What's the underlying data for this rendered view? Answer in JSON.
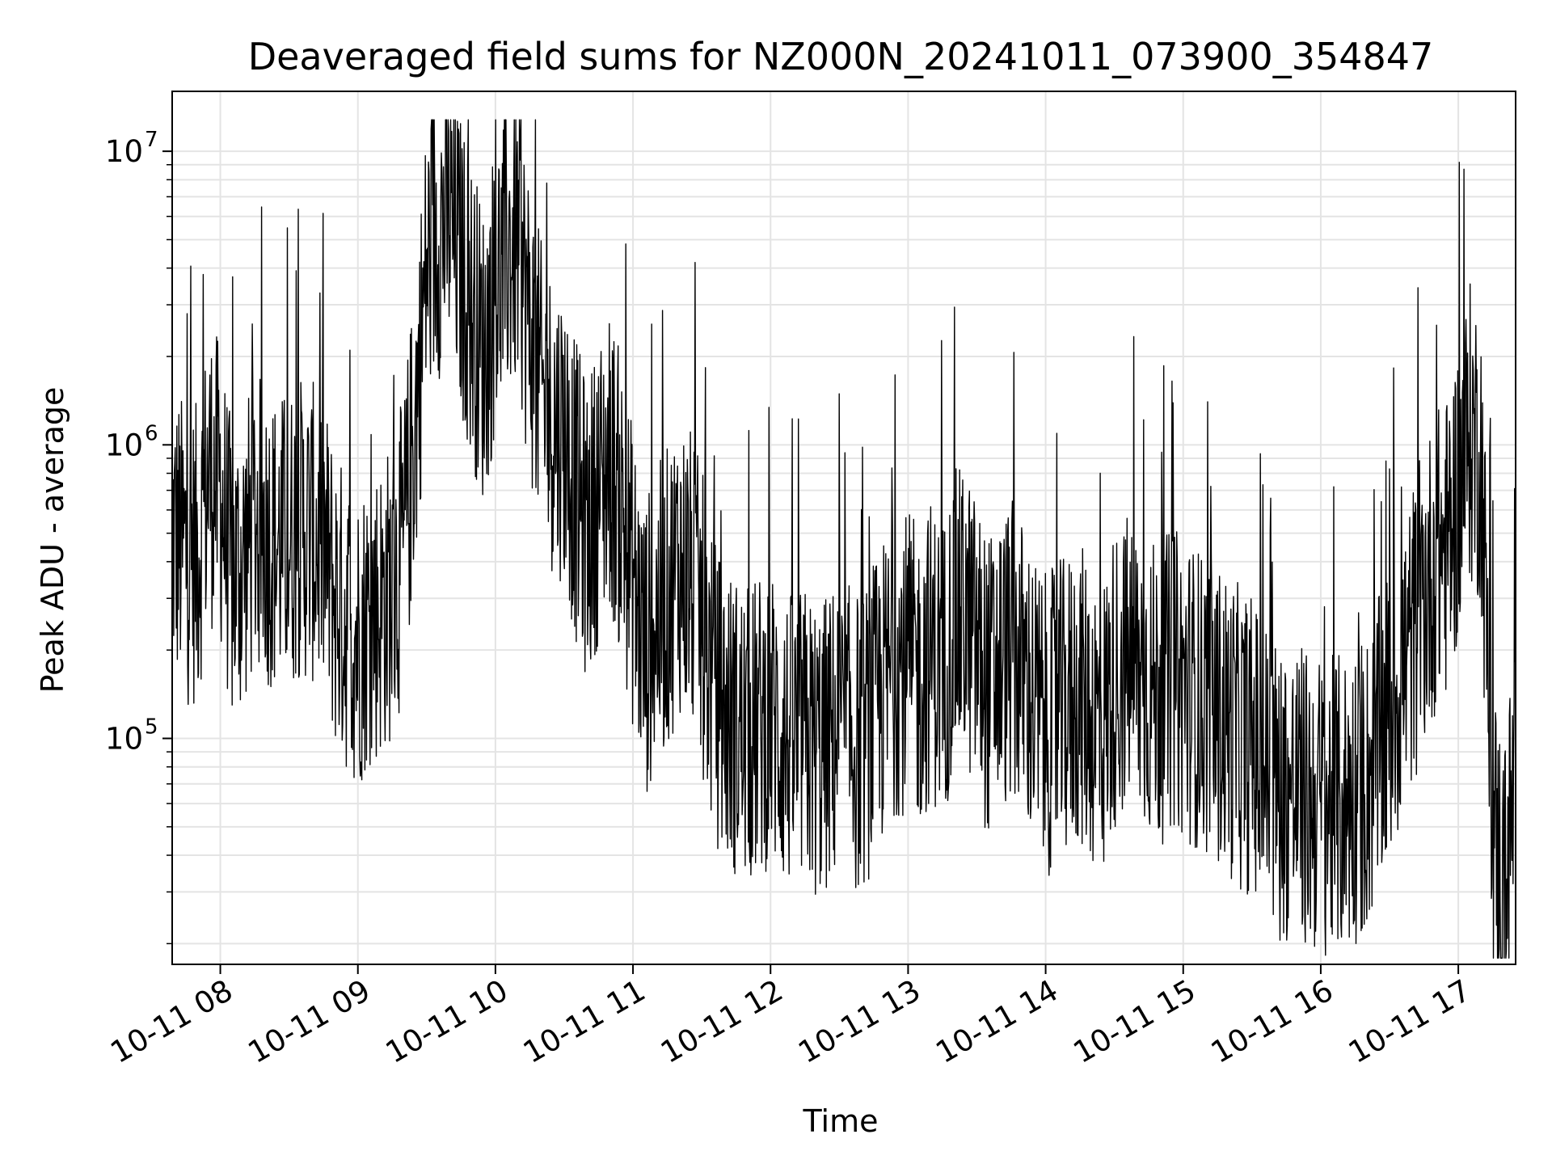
{
  "chart_data": {
    "type": "line",
    "title": "Deaveraged field sums for NZ000N_20241011_073900_354847",
    "xlabel": "Time",
    "ylabel": "Peak ADU - average",
    "yscale": "log",
    "ylim": [
      17000,
      16000000
    ],
    "xlim": [
      "2024-10-11 07:39:00",
      "2024-10-11 17:25:00"
    ],
    "grid": true,
    "line_color": "#000000",
    "x_ticks": [
      "10-11 08",
      "10-11 09",
      "10-11 10",
      "10-11 11",
      "10-11 12",
      "10-11 13",
      "10-11 14",
      "10-11 15",
      "10-11 16",
      "10-11 17"
    ],
    "y_ticks": [
      {
        "base": "10",
        "exp": "5",
        "value": 100000
      },
      {
        "base": "10",
        "exp": "6",
        "value": 1000000
      },
      {
        "base": "10",
        "exp": "7",
        "value": 10000000
      }
    ],
    "series": [
      {
        "x": [
          "07:39",
          "07:45",
          "07:50",
          "07:55",
          "08:00",
          "08:05",
          "08:10",
          "08:15",
          "08:20",
          "08:25",
          "08:30",
          "08:35",
          "08:40",
          "08:45",
          "08:50",
          "08:55",
          "09:00",
          "09:05",
          "09:10",
          "09:15",
          "09:20",
          "09:25",
          "09:30",
          "09:35",
          "09:40",
          "09:45",
          "09:50",
          "09:55",
          "10:00",
          "10:05",
          "10:10",
          "10:15",
          "10:20",
          "10:25",
          "10:30",
          "10:35",
          "10:40",
          "10:45",
          "10:50",
          "10:55",
          "11:00",
          "11:05",
          "11:10",
          "11:15",
          "11:20",
          "11:25",
          "11:30",
          "11:35",
          "11:40",
          "11:45",
          "11:50",
          "11:55",
          "12:00",
          "12:05",
          "12:10",
          "12:15",
          "12:20",
          "12:25",
          "12:30",
          "12:35",
          "12:40",
          "12:45",
          "12:50",
          "12:55",
          "13:00",
          "13:05",
          "13:10",
          "13:15",
          "13:20",
          "13:25",
          "13:30",
          "13:35",
          "13:40",
          "13:45",
          "13:50",
          "13:55",
          "14:00",
          "14:05",
          "14:10",
          "14:15",
          "14:20",
          "14:25",
          "14:30",
          "14:35",
          "14:40",
          "14:45",
          "14:50",
          "14:55",
          "15:00",
          "15:05",
          "15:10",
          "15:15",
          "15:20",
          "15:25",
          "15:30",
          "15:35",
          "15:40",
          "15:45",
          "15:50",
          "15:55",
          "16:00",
          "16:05",
          "16:10",
          "16:15",
          "16:20",
          "16:25",
          "16:30",
          "16:35",
          "16:40",
          "16:45",
          "16:50",
          "16:55",
          "17:00",
          "17:05",
          "17:10",
          "17:15",
          "17:20",
          "17:25"
        ],
        "values": [
          500000,
          430000,
          420000,
          800000,
          700000,
          350000,
          400000,
          550000,
          500000,
          450000,
          480000,
          520000,
          500000,
          450000,
          300000,
          250000,
          220000,
          260000,
          280000,
          320000,
          450000,
          1200000,
          4000000,
          5500000,
          6000000,
          4000000,
          2800000,
          2000000,
          3500000,
          4500000,
          5000000,
          2500000,
          1500000,
          1200000,
          1100000,
          700000,
          500000,
          700000,
          900000,
          600000,
          350000,
          200000,
          250000,
          300000,
          400000,
          350000,
          250000,
          150000,
          120000,
          110000,
          100000,
          110000,
          120000,
          100000,
          95000,
          100000,
          90000,
          95000,
          110000,
          100000,
          95000,
          120000,
          150000,
          180000,
          180000,
          160000,
          200000,
          170000,
          250000,
          260000,
          200000,
          150000,
          180000,
          200000,
          170000,
          130000,
          110000,
          120000,
          130000,
          140000,
          120000,
          110000,
          160000,
          180000,
          170000,
          150000,
          140000,
          160000,
          150000,
          140000,
          130000,
          120000,
          110000,
          100000,
          95000,
          80000,
          70000,
          65000,
          65000,
          60000,
          60000,
          58000,
          60000,
          65000,
          70000,
          90000,
          120000,
          160000,
          220000,
          300000,
          400000,
          450000,
          700000,
          1100000,
          900000,
          50000,
          30000,
          75000
        ]
      }
    ]
  }
}
